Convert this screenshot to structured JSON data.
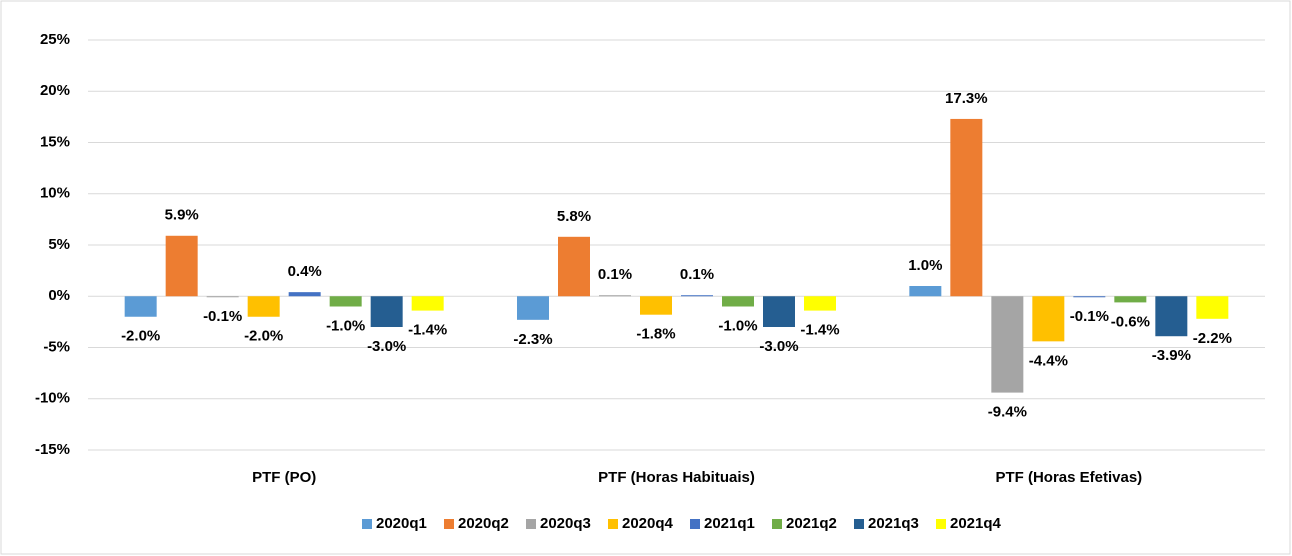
{
  "chart_data": {
    "type": "bar",
    "categories": [
      "PTF (PO)",
      "PTF (Horas Habituais)",
      "PTF (Horas Efetivas)"
    ],
    "series": [
      {
        "name": "2020q1",
        "color": "#5b9bd5",
        "values": [
          -2.0,
          -2.3,
          1.0
        ],
        "value_labels": [
          "-2.0%",
          "-2.3%",
          "1.0%"
        ]
      },
      {
        "name": "2020q2",
        "color": "#ed7d31",
        "values": [
          5.9,
          5.8,
          17.3
        ],
        "value_labels": [
          "5.9%",
          "5.8%",
          "17.3%"
        ]
      },
      {
        "name": "2020q3",
        "color": "#a5a5a5",
        "values": [
          -0.1,
          0.1,
          -9.4
        ],
        "value_labels": [
          "-0.1%",
          "0.1%",
          "-9.4%"
        ]
      },
      {
        "name": "2020q4",
        "color": "#ffc000",
        "values": [
          -2.0,
          -1.8,
          -4.4
        ],
        "value_labels": [
          "-2.0%",
          "-1.8%",
          "-4.4%"
        ]
      },
      {
        "name": "2021q1",
        "color": "#4472c4",
        "values": [
          0.4,
          0.1,
          -0.1
        ],
        "value_labels": [
          "0.4%",
          "0.1%",
          "-0.1%"
        ]
      },
      {
        "name": "2021q2",
        "color": "#70ad47",
        "values": [
          -1.0,
          -1.0,
          -0.6
        ],
        "value_labels": [
          "-1.0%",
          "-1.0%",
          "-0.6%"
        ]
      },
      {
        "name": "2021q3",
        "color": "#255e91",
        "values": [
          -3.0,
          -3.0,
          -3.9
        ],
        "value_labels": [
          "-3.0%",
          "-3.0%",
          "-3.9%"
        ]
      },
      {
        "name": "2021q4",
        "color": "#ffff00",
        "values": [
          -1.4,
          -1.4,
          -2.2
        ],
        "value_labels": [
          "-1.4%",
          "-1.4%",
          "-2.2%"
        ]
      }
    ],
    "ylim": [
      -15,
      25
    ],
    "yticks": [
      {
        "value": -15,
        "label": "-15%"
      },
      {
        "value": -10,
        "label": "-10%"
      },
      {
        "value": -5,
        "label": "-5%"
      },
      {
        "value": 0,
        "label": "0%"
      },
      {
        "value": 5,
        "label": "5%"
      },
      {
        "value": 10,
        "label": "10%"
      },
      {
        "value": 15,
        "label": "15%"
      },
      {
        "value": 20,
        "label": "20%"
      },
      {
        "value": 25,
        "label": "25%"
      }
    ],
    "grid": true,
    "legend": "bottom"
  }
}
